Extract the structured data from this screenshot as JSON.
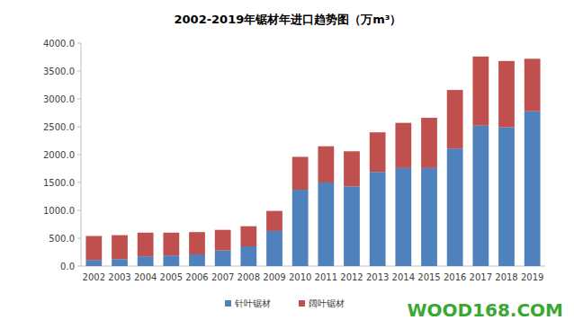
{
  "chart_data": {
    "type": "bar",
    "title": "2002-2019年锯材年进口趋势图（万m³）",
    "categories": [
      "2002",
      "2003",
      "2004",
      "2005",
      "2006",
      "2007",
      "2008",
      "2009",
      "2010",
      "2011",
      "2012",
      "2013",
      "2014",
      "2015",
      "2016",
      "2017",
      "2018",
      "2019"
    ],
    "series": [
      {
        "name": "针叶锯材",
        "color": "#4f81bd",
        "values": [
          110,
          125,
          175,
          190,
          210,
          280,
          355,
          630,
          1370,
          1500,
          1430,
          1690,
          1760,
          1760,
          2110,
          2520,
          2490,
          2780
        ]
      },
      {
        "name": "阔叶锯材",
        "color": "#c0504d",
        "values": [
          430,
          430,
          425,
          410,
          400,
          370,
          360,
          360,
          590,
          650,
          630,
          710,
          810,
          900,
          1050,
          1240,
          1190,
          940
        ]
      }
    ],
    "stacked": true,
    "ylim": [
      0,
      4000
    ],
    "yticks": [
      {
        "value": 0,
        "label": "0.0"
      },
      {
        "value": 500,
        "label": "500.0"
      },
      {
        "value": 1000,
        "label": "1000.0"
      },
      {
        "value": 1500,
        "label": "1500.0"
      },
      {
        "value": 2000,
        "label": "2000.0"
      },
      {
        "value": 2500,
        "label": "2500.0"
      },
      {
        "value": 3000,
        "label": "3000.0"
      },
      {
        "value": 3500,
        "label": "3500.0"
      },
      {
        "value": 4000,
        "label": "4000.0"
      }
    ],
    "grid": false,
    "legend": "bottom",
    "annotations": [
      "WOOD168.COM"
    ]
  }
}
